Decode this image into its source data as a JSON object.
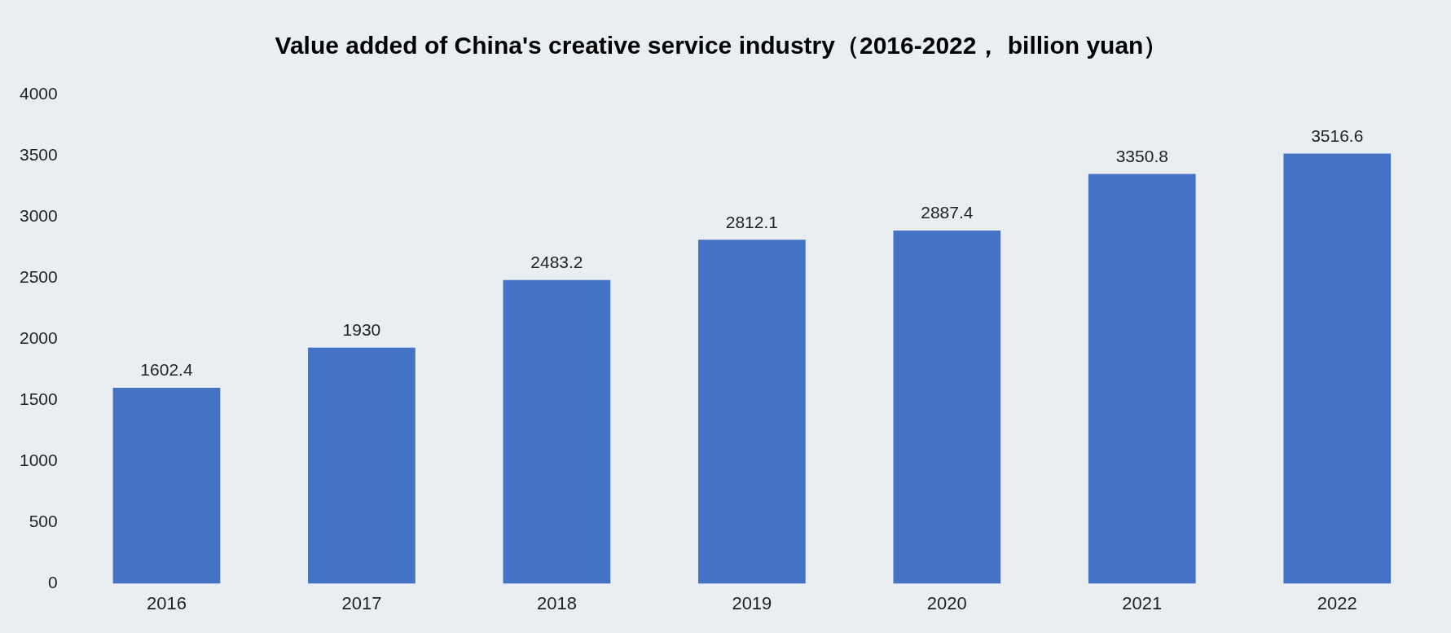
{
  "chart_data": {
    "type": "bar",
    "title": "Value added of China's creative service industry（2016-2022， billion yuan）",
    "categories": [
      "2016",
      "2017",
      "2018",
      "2019",
      "2020",
      "2021",
      "2022"
    ],
    "values": [
      1602.4,
      1930,
      2483.2,
      2812.1,
      2887.4,
      3350.8,
      3516.6
    ],
    "color": "#4472c4",
    "ylim": [
      0,
      4000
    ],
    "yticks": [
      0,
      500,
      1000,
      1500,
      2000,
      2500,
      3000,
      3500,
      4000
    ],
    "grid": false,
    "legend": false,
    "data_labels": true
  }
}
